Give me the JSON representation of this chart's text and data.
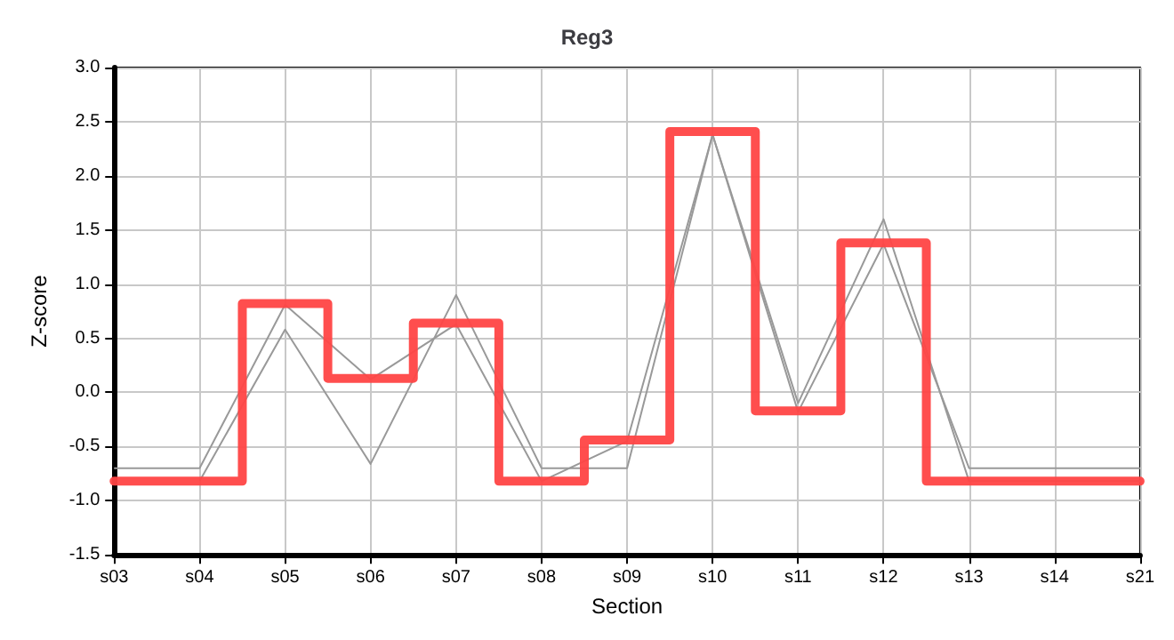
{
  "chart_data": {
    "type": "line",
    "title": "Reg3",
    "xlabel": "Section",
    "ylabel": "Z-score",
    "categories": [
      "s03",
      "s04",
      "s05",
      "s06",
      "s07",
      "s08",
      "s09",
      "s10",
      "s11",
      "s12",
      "s13",
      "s14",
      "s21"
    ],
    "series": [
      {
        "color": "#999999",
        "values": [
          -0.7,
          -0.7,
          0.81,
          0.12,
          0.63,
          -0.82,
          -0.45,
          2.38,
          -0.18,
          1.37,
          -0.7,
          -0.7,
          -0.7
        ]
      },
      {
        "color": "#999999",
        "values": [
          null,
          -0.82,
          0.58,
          -0.66,
          0.9,
          -0.7,
          -0.7,
          2.38,
          -0.1,
          1.6,
          -0.82,
          -0.82,
          -0.82
        ]
      },
      {
        "type": "step",
        "color": "#ff4444",
        "values": [
          -0.82,
          -0.82,
          0.82,
          0.13,
          0.64,
          -0.82,
          -0.44,
          2.41,
          -0.17,
          1.38,
          -0.82,
          -0.82,
          -0.82
        ]
      }
    ],
    "ylim": [
      -1.5,
      3
    ],
    "yticks": [
      {
        "value": -1.5,
        "label": "-1.5"
      },
      {
        "value": -1,
        "label": "-1.0"
      },
      {
        "value": -0.5,
        "label": "-0.5"
      },
      {
        "value": 0,
        "label": "0.0"
      },
      {
        "value": 0.5,
        "label": "0.5"
      },
      {
        "value": 1,
        "label": "1.0"
      },
      {
        "value": 1.5,
        "label": "1.5"
      },
      {
        "value": 2,
        "label": "2.0"
      },
      {
        "value": 2.5,
        "label": "2.5"
      },
      {
        "value": 3,
        "label": "3.0"
      }
    ],
    "grid": true,
    "marker": "none",
    "line_style": "solid"
  }
}
